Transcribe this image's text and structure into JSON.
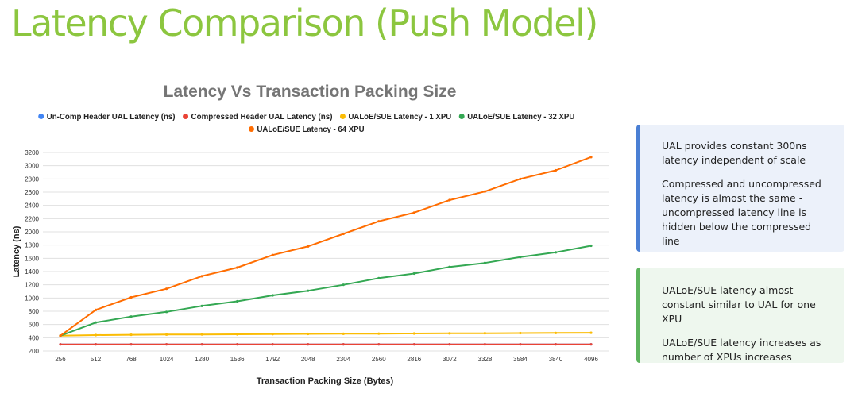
{
  "slide": {
    "title": "Latency Comparison (Push Model)"
  },
  "chart_data": {
    "type": "line",
    "title": "Latency Vs Transaction Packing Size",
    "xlabel": "Transaction Packing Size (Bytes)",
    "ylabel": "Latency (ns)",
    "ylim": [
      200,
      3200
    ],
    "yticks": [
      200,
      400,
      600,
      800,
      1000,
      1200,
      1400,
      1600,
      1800,
      2000,
      2200,
      2400,
      2600,
      2800,
      3000,
      3200
    ],
    "grid": true,
    "legend_position": "top",
    "x": [
      256,
      512,
      768,
      1024,
      1280,
      1536,
      1792,
      2048,
      2304,
      2560,
      2816,
      3072,
      3328,
      3584,
      3840,
      4096
    ],
    "series": [
      {
        "name": "Un-Comp Header UAL Latency (ns)",
        "color": "#4285f4",
        "values": [
          300,
          300,
          300,
          300,
          300,
          300,
          300,
          300,
          300,
          300,
          300,
          300,
          300,
          300,
          300,
          300
        ]
      },
      {
        "name": "Compressed Header UAL Latency (ns)",
        "color": "#ea4335",
        "values": [
          300,
          300,
          300,
          300,
          300,
          300,
          300,
          300,
          300,
          300,
          300,
          300,
          300,
          300,
          300,
          300
        ]
      },
      {
        "name": "UALoE/SUE Latency - 1 XPU",
        "color": "#fbbc04",
        "values": [
          430,
          440,
          445,
          448,
          450,
          452,
          455,
          458,
          460,
          462,
          464,
          466,
          468,
          470,
          472,
          475
        ]
      },
      {
        "name": "UALoE/SUE Latency - 32 XPU",
        "color": "#34a853",
        "values": [
          430,
          630,
          720,
          790,
          880,
          950,
          1040,
          1110,
          1200,
          1300,
          1370,
          1470,
          1530,
          1620,
          1690,
          1790
        ]
      },
      {
        "name": "UALoE/SUE Latency - 64 XPU",
        "color": "#ff6d01",
        "values": [
          430,
          820,
          1010,
          1140,
          1330,
          1460,
          1650,
          1780,
          1970,
          2160,
          2290,
          2480,
          2610,
          2800,
          2930,
          3130
        ]
      }
    ]
  },
  "notes": [
    {
      "color": "#4a7fd4",
      "paragraphs": [
        "UAL provides constant 300ns latency independent of scale",
        "Compressed and uncompressed latency is almost the same - uncompressed latency line is hidden below the compressed line"
      ]
    },
    {
      "color": "#5cb35c",
      "paragraphs": [
        "UALoE/SUE latency almost constant similar to UAL for one XPU",
        "UALoE/SUE latency increases as number of XPUs increases"
      ]
    }
  ]
}
